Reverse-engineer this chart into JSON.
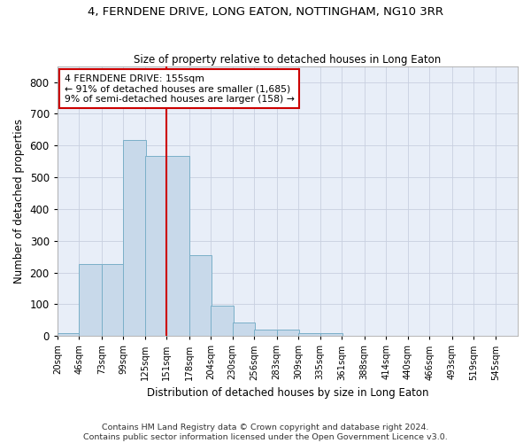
{
  "title": "4, FERNDENE DRIVE, LONG EATON, NOTTINGHAM, NG10 3RR",
  "subtitle": "Size of property relative to detached houses in Long Eaton",
  "xlabel": "Distribution of detached houses by size in Long Eaton",
  "ylabel": "Number of detached properties",
  "bar_color": "#c8d9ea",
  "bar_edge_color": "#7aafc8",
  "background_color": "#e8eef8",
  "grid_color": "#c8cfe0",
  "vline_x": 151,
  "vline_color": "#cc0000",
  "annotation_text": "4 FERNDENE DRIVE: 155sqm\n← 91% of detached houses are smaller (1,685)\n9% of semi-detached houses are larger (158) →",
  "annotation_box_color": "#cc0000",
  "bins_left": [
    20,
    46,
    73,
    99,
    125,
    151,
    178,
    204,
    230,
    256,
    283,
    309,
    335,
    361,
    388,
    414,
    440,
    466,
    493,
    519
  ],
  "bin_width": 27,
  "bar_heights": [
    10,
    228,
    228,
    618,
    568,
    568,
    255,
    95,
    43,
    20,
    20,
    10,
    8,
    0,
    0,
    0,
    0,
    0,
    0,
    0
  ],
  "ylim": [
    0,
    850
  ],
  "yticks": [
    0,
    100,
    200,
    300,
    400,
    500,
    600,
    700,
    800
  ],
  "footer": "Contains HM Land Registry data © Crown copyright and database right 2024.\nContains public sector information licensed under the Open Government Licence v3.0.",
  "tick_labels": [
    "20sqm",
    "46sqm",
    "73sqm",
    "99sqm",
    "125sqm",
    "151sqm",
    "178sqm",
    "204sqm",
    "230sqm",
    "256sqm",
    "283sqm",
    "309sqm",
    "335sqm",
    "361sqm",
    "388sqm",
    "414sqm",
    "440sqm",
    "466sqm",
    "493sqm",
    "519sqm",
    "545sqm"
  ],
  "fig_width": 6.0,
  "fig_height": 5.0
}
